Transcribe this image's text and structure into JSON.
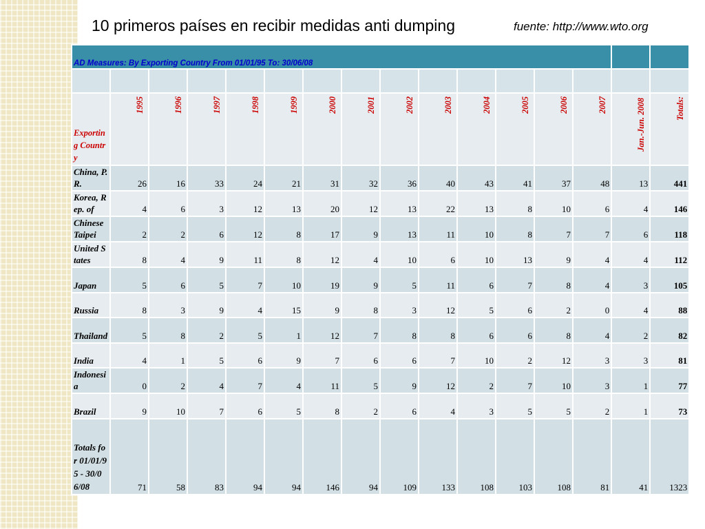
{
  "slide": {
    "title": "10 primeros países en recibir medidas anti dumping",
    "source": "fuente: http://www.wto.org"
  },
  "table": {
    "title": "AD Measures: By Exporting Country  From 01/01/95 To: 30/06/08",
    "header_label": "Exporting Country",
    "years": [
      "1995",
      "1996",
      "1997",
      "1998",
      "1999",
      "2000",
      "2001",
      "2002",
      "2003",
      "2004",
      "2005",
      "2006",
      "2007",
      "Jan.-Jun. 2008"
    ],
    "totals_header": "Totals:",
    "rows": [
      {
        "country": "China, P.R.",
        "values": [
          "26",
          "16",
          "33",
          "24",
          "21",
          "31",
          "32",
          "36",
          "40",
          "43",
          "41",
          "37",
          "48",
          "13"
        ],
        "total": "441"
      },
      {
        "country": "Korea, Rep. of",
        "values": [
          "4",
          "6",
          "3",
          "12",
          "13",
          "20",
          "12",
          "13",
          "22",
          "13",
          "8",
          "10",
          "6",
          "4"
        ],
        "total": "146"
      },
      {
        "country": "Chinese Taipei",
        "values": [
          "2",
          "2",
          "6",
          "12",
          "8",
          "17",
          "9",
          "13",
          "11",
          "10",
          "8",
          "7",
          "7",
          "6"
        ],
        "total": "118"
      },
      {
        "country": "United States",
        "values": [
          "8",
          "4",
          "9",
          "11",
          "8",
          "12",
          "4",
          "10",
          "6",
          "10",
          "13",
          "9",
          "4",
          "4"
        ],
        "total": "112"
      },
      {
        "country": "Japan",
        "values": [
          "5",
          "6",
          "5",
          "7",
          "10",
          "19",
          "9",
          "5",
          "11",
          "6",
          "7",
          "8",
          "4",
          "3"
        ],
        "total": "105"
      },
      {
        "country": "Russia",
        "values": [
          "8",
          "3",
          "9",
          "4",
          "15",
          "9",
          "8",
          "3",
          "12",
          "5",
          "6",
          "2",
          "0",
          "4"
        ],
        "total": "88"
      },
      {
        "country": "Thailand",
        "values": [
          "5",
          "8",
          "2",
          "5",
          "1",
          "12",
          "7",
          "8",
          "8",
          "6",
          "6",
          "8",
          "4",
          "2"
        ],
        "total": "82"
      },
      {
        "country": "India",
        "values": [
          "4",
          "1",
          "5",
          "6",
          "9",
          "7",
          "6",
          "6",
          "7",
          "10",
          "2",
          "12",
          "3",
          "3"
        ],
        "total": "81"
      },
      {
        "country": "Indonesia",
        "values": [
          "0",
          "2",
          "4",
          "7",
          "4",
          "11",
          "5",
          "9",
          "12",
          "2",
          "7",
          "10",
          "3",
          "1"
        ],
        "total": "77"
      },
      {
        "country": "Brazil",
        "values": [
          "9",
          "10",
          "7",
          "6",
          "5",
          "8",
          "2",
          "6",
          "4",
          "3",
          "5",
          "5",
          "2",
          "1"
        ],
        "total": "73"
      }
    ],
    "totals_row": {
      "label": "Totals for 01/01/95 - 30/06/08",
      "values": [
        "71",
        "58",
        "83",
        "94",
        "94",
        "146",
        "94",
        "109",
        "133",
        "108",
        "103",
        "108",
        "81",
        "41"
      ],
      "total": "1323"
    }
  },
  "colors": {
    "title_bar": "#3a8fa8",
    "row_dark": "#d2dfe4",
    "row_light": "#e6ecef",
    "country_text": "#0000cc",
    "header_text": "#cc0000"
  }
}
